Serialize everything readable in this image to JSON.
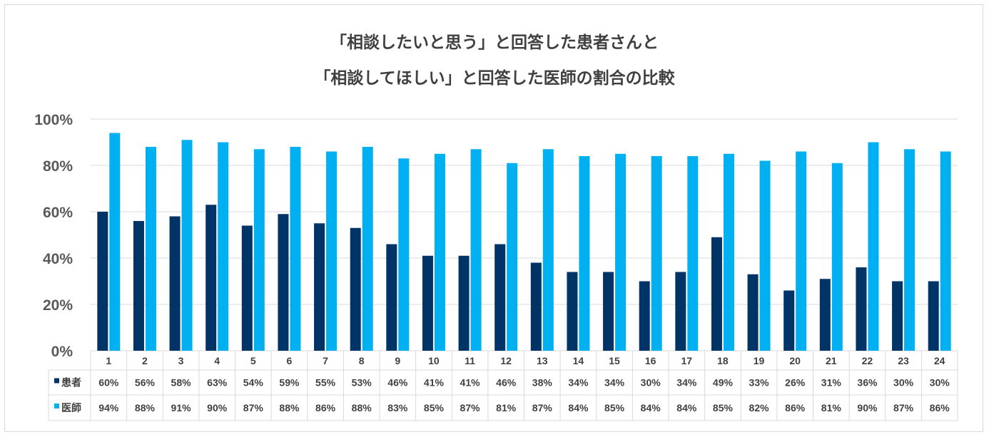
{
  "colors": {
    "patient": "#003366",
    "doctor": "#00b0f0",
    "grid": "#d9d9d9",
    "text": "#404040"
  },
  "chart_data": {
    "type": "bar",
    "title_line1": "「相談したいと思う」と回答した患者さんと",
    "title_line2": "「相談してほしい」と回答した医師の割合の比較",
    "categories": [
      "1",
      "2",
      "3",
      "4",
      "5",
      "6",
      "7",
      "8",
      "9",
      "10",
      "11",
      "12",
      "13",
      "14",
      "15",
      "16",
      "17",
      "18",
      "19",
      "20",
      "21",
      "22",
      "23",
      "24"
    ],
    "ylim": [
      0,
      100
    ],
    "yticks": [
      "0%",
      "20%",
      "40%",
      "60%",
      "80%",
      "100%"
    ],
    "grid": true,
    "legend_placement": "data-table",
    "series": [
      {
        "name": "患者",
        "color": "#003366",
        "values": [
          60,
          56,
          58,
          63,
          54,
          59,
          55,
          53,
          46,
          41,
          41,
          46,
          38,
          34,
          34,
          30,
          34,
          49,
          33,
          26,
          31,
          36,
          30,
          30
        ],
        "labels": [
          "60%",
          "56%",
          "58%",
          "63%",
          "54%",
          "59%",
          "55%",
          "53%",
          "46%",
          "41%",
          "41%",
          "46%",
          "38%",
          "34%",
          "34%",
          "30%",
          "34%",
          "49%",
          "33%",
          "26%",
          "31%",
          "36%",
          "30%",
          "30%"
        ]
      },
      {
        "name": "医師",
        "color": "#00b0f0",
        "values": [
          94,
          88,
          91,
          90,
          87,
          88,
          86,
          88,
          83,
          85,
          87,
          81,
          87,
          84,
          85,
          84,
          84,
          85,
          82,
          86,
          81,
          90,
          87,
          86
        ],
        "labels": [
          "94%",
          "88%",
          "91%",
          "90%",
          "87%",
          "88%",
          "86%",
          "88%",
          "83%",
          "85%",
          "87%",
          "81%",
          "87%",
          "84%",
          "85%",
          "84%",
          "84%",
          "85%",
          "82%",
          "86%",
          "81%",
          "90%",
          "87%",
          "86%"
        ]
      }
    ]
  }
}
